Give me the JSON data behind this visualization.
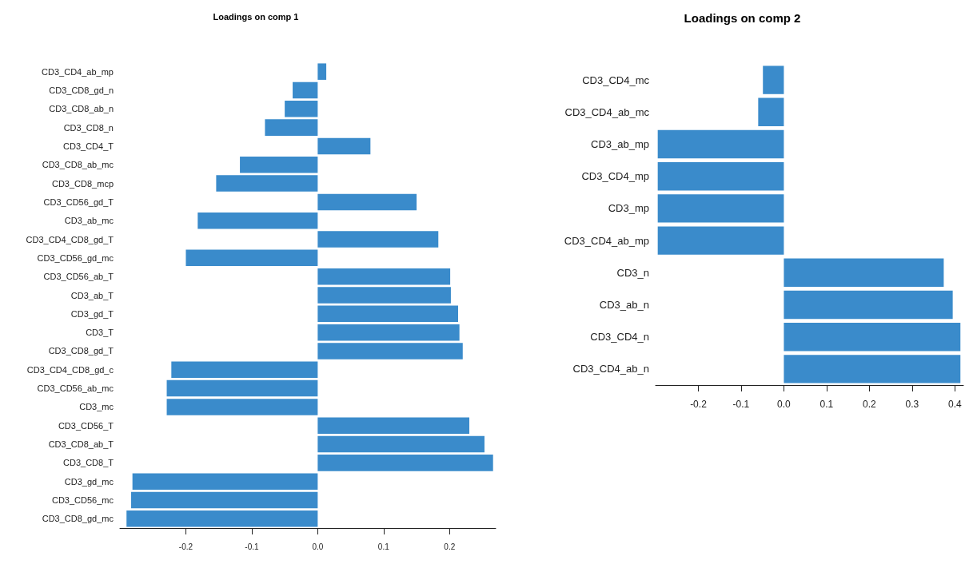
{
  "chart_data": [
    {
      "type": "bar",
      "orientation": "horizontal",
      "title": "Loadings on comp 1",
      "color": "#3a8bcb",
      "grid": false,
      "categories": [
        "CD3_CD4_ab_mp",
        "CD3_CD8_gd_n",
        "CD3_CD8_ab_n",
        "CD3_CD8_n",
        "CD3_CD4_T",
        "CD3_CD8_ab_mc",
        "CD3_CD8_mcp",
        "CD3_CD56_gd_T",
        "CD3_ab_mc",
        "CD3_CD4_CD8_gd_T",
        "CD3_CD56_gd_mc",
        "CD3_CD56_ab_T",
        "CD3_ab_T",
        "CD3_gd_T",
        "CD3_T",
        "CD3_CD8_gd_T",
        "CD3_CD4_CD8_gd_c",
        "CD3_CD56_ab_mc",
        "CD3_mc",
        "CD3_CD56_T",
        "CD3_CD8_ab_T",
        "CD3_CD8_T",
        "CD3_gd_mc",
        "CD3_CD56_mc",
        "CD3_CD8_gd_mc"
      ],
      "values": [
        0.013,
        -0.038,
        -0.05,
        -0.08,
        0.08,
        -0.118,
        -0.154,
        0.15,
        -0.182,
        0.183,
        -0.2,
        0.201,
        0.202,
        0.213,
        0.215,
        0.22,
        -0.222,
        -0.229,
        -0.229,
        0.23,
        0.253,
        0.266,
        -0.281,
        -0.283,
        -0.29
      ],
      "xlim": [
        -0.3,
        0.27
      ],
      "xticks": [
        -0.2,
        -0.1,
        {
          "value": 0,
          "label": "0.0"
        },
        0.1,
        0.2
      ]
    },
    {
      "type": "bar",
      "orientation": "horizontal",
      "title": "Loadings on comp 2",
      "color": "#3a8bcb",
      "grid": false,
      "categories": [
        "CD3_CD4_mc",
        "CD3_CD4_ab_mc",
        "CD3_ab_mp",
        "CD3_CD4_mp",
        "CD3_mp",
        "CD3_CD4_ab_mp",
        "CD3_n",
        "CD3_ab_n",
        "CD3_CD4_n",
        "CD3_CD4_ab_n"
      ],
      "values": [
        -0.049,
        -0.06,
        -0.295,
        -0.295,
        -0.295,
        -0.295,
        0.374,
        0.395,
        0.413,
        0.413
      ],
      "xlim": [
        -0.3,
        0.42
      ],
      "xticks": [
        -0.2,
        -0.1,
        {
          "value": 0,
          "label": "0.0"
        },
        0.1,
        0.2,
        0.3,
        0.4
      ]
    }
  ]
}
